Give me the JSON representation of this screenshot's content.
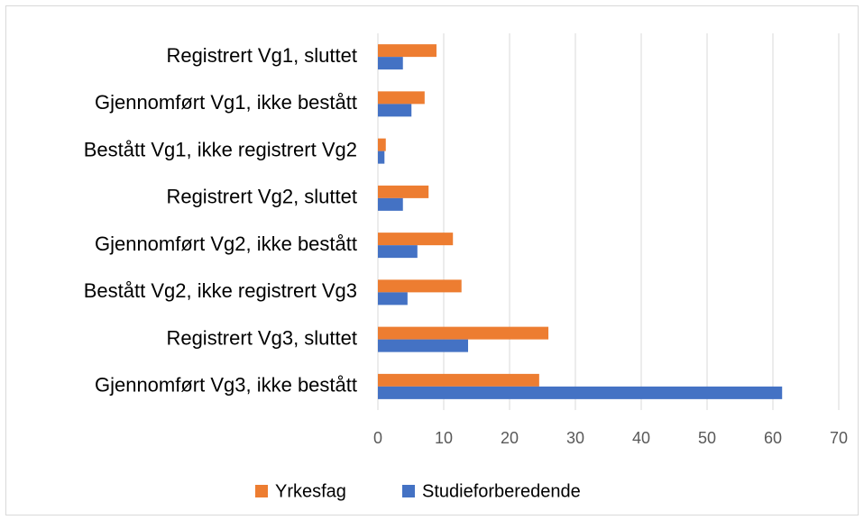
{
  "chart_data": {
    "type": "hbar",
    "categories": [
      "Registrert Vg1, sluttet",
      "Gjennomført Vg1, ikke bestått",
      "Bestått Vg1, ikke registrert Vg2",
      "Registrert Vg2, sluttet",
      "Gjennomført Vg2, ikke bestått",
      "Bestått Vg2, ikke registrert Vg3",
      "Registrert Vg3, sluttet",
      "Gjennomført Vg3, ikke bestått"
    ],
    "series": [
      {
        "name": "Yrkesfag",
        "color": "#ed7d31",
        "values": [
          8.9,
          7.1,
          1.2,
          7.7,
          11.4,
          12.7,
          25.9,
          24.5
        ]
      },
      {
        "name": "Studieforberedende",
        "color": "#4472c4",
        "values": [
          3.8,
          5.1,
          1.0,
          3.8,
          6.0,
          4.5,
          13.7,
          61.4
        ]
      }
    ],
    "xlim": [
      0,
      70
    ],
    "xticks": [
      0,
      10,
      20,
      30,
      40,
      50,
      60,
      70
    ],
    "grid": true,
    "legend": "bottom"
  }
}
